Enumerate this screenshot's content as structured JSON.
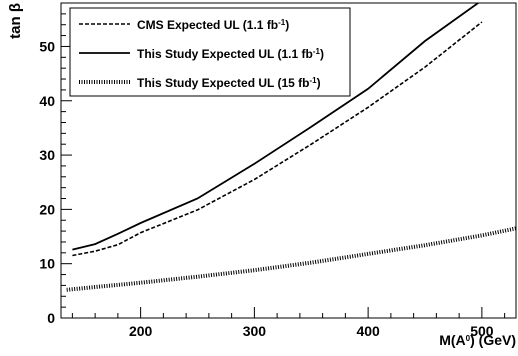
{
  "chart_data": {
    "type": "line",
    "title": "",
    "xlabel": "M(A^0) (GeV)",
    "ylabel": "tan β",
    "xlim": [
      130,
      530
    ],
    "ylim": [
      0,
      58
    ],
    "x_ticks": [
      200,
      300,
      400,
      500
    ],
    "y_ticks": [
      0,
      10,
      20,
      30,
      40,
      50
    ],
    "grid": false,
    "legend_position": "top-left",
    "series": [
      {
        "name": "CMS Expected UL (1.1 fb⁻¹)",
        "style": "dashed",
        "color": "#000000",
        "x": [
          140,
          160,
          180,
          200,
          250,
          300,
          350,
          400,
          450,
          500
        ],
        "y": [
          11.5,
          12.3,
          13.5,
          15.7,
          19.9,
          25.5,
          32.0,
          38.8,
          46.2,
          54.5
        ]
      },
      {
        "name": "This Study Expected UL (1.1 fb⁻¹)",
        "style": "solid",
        "color": "#000000",
        "x": [
          140,
          160,
          180,
          200,
          250,
          300,
          350,
          400,
          450,
          500
        ],
        "y": [
          12.6,
          13.6,
          15.5,
          17.5,
          22.0,
          28.4,
          35.2,
          42.2,
          51.0,
          58.5
        ]
      },
      {
        "name": "This Study Expected UL (15 fb⁻¹)",
        "style": "hatched",
        "color": "#000000",
        "x": [
          135,
          160,
          180,
          200,
          250,
          300,
          350,
          400,
          450,
          500,
          530
        ],
        "y": [
          5.2,
          5.7,
          6.1,
          6.5,
          7.6,
          8.8,
          10.2,
          11.8,
          13.4,
          15.2,
          16.5
        ]
      }
    ]
  }
}
